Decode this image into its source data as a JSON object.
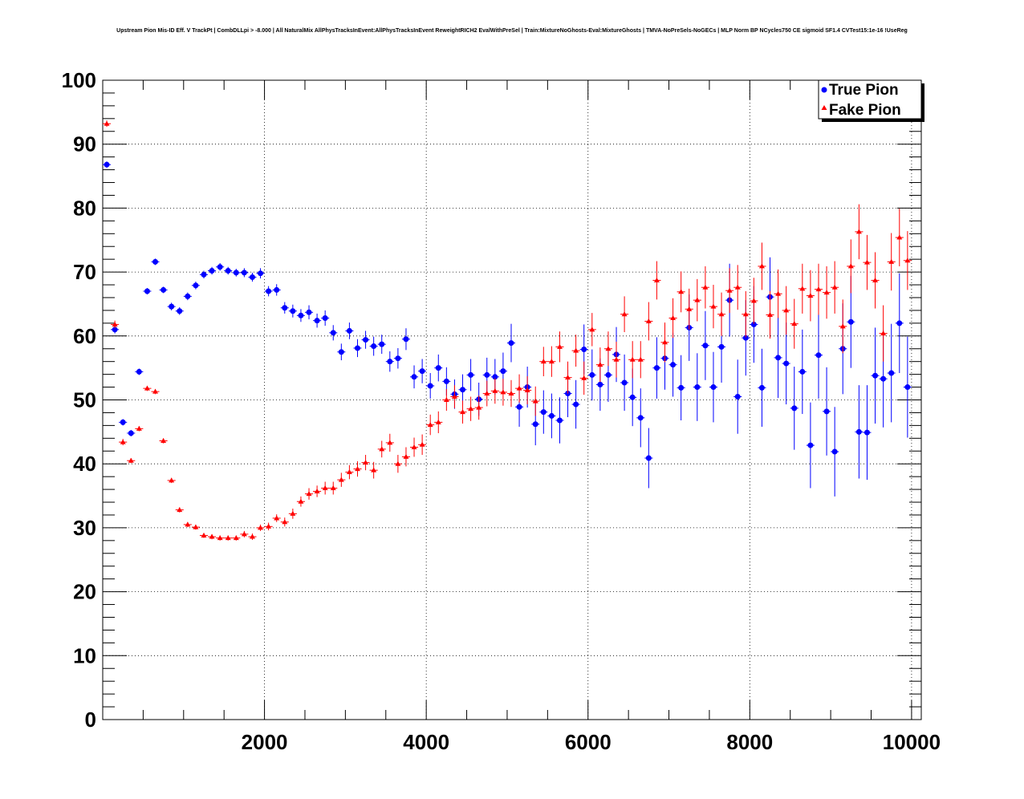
{
  "chart_data": {
    "type": "scatter",
    "title": "Upstream Pion Mis-ID Eff. V TrackPt | CombDLLpi > -8.000 | All NaturalMix AllPhysTracksInEvent:AllPhysTracksInEvent ReweightRICH2 EvalWithPreSel | Train:MixtureNoGhosts-Eval:MixtureGhosts | TMVA-NoPreSels-NoGECs | MLP Norm BP NCycles750 CE sigmoid SF1.4 CVTest15:1e-16 !UseReg",
    "xlabel": "",
    "ylabel": "",
    "xlim": [
      0,
      10000
    ],
    "ylim": [
      0,
      100
    ],
    "xticks": [
      2000,
      4000,
      6000,
      8000,
      10000
    ],
    "yticks": [
      0,
      10,
      20,
      30,
      40,
      50,
      60,
      70,
      80,
      90,
      100
    ],
    "grid": true,
    "legend_position": "top-right",
    "bin_half_width": 50,
    "series": [
      {
        "name": "True Pion",
        "color": "#0000ff",
        "marker": "circle",
        "x": [
          50,
          150,
          250,
          350,
          450,
          550,
          650,
          750,
          850,
          950,
          1050,
          1150,
          1250,
          1350,
          1450,
          1550,
          1650,
          1750,
          1850,
          1950,
          2050,
          2150,
          2250,
          2350,
          2450,
          2550,
          2650,
          2750,
          2850,
          2950,
          3050,
          3150,
          3250,
          3350,
          3450,
          3550,
          3650,
          3750,
          3850,
          3950,
          4050,
          4150,
          4250,
          4350,
          4450,
          4550,
          4650,
          4750,
          4850,
          4950,
          5050,
          5150,
          5250,
          5350,
          5450,
          5550,
          5650,
          5750,
          5850,
          5950,
          6050,
          6150,
          6250,
          6350,
          6450,
          6550,
          6650,
          6750,
          6850,
          6950,
          7050,
          7150,
          7250,
          7350,
          7450,
          7550,
          7650,
          7750,
          7850,
          7950,
          8050,
          8150,
          8250,
          8350,
          8450,
          8550,
          8650,
          8750,
          8850,
          8950,
          9050,
          9150,
          9250,
          9350,
          9450,
          9550,
          9650,
          9750,
          9850,
          9950
        ],
        "y": [
          86.8,
          61.0,
          46.5,
          44.8,
          54.4,
          67.0,
          71.6,
          67.2,
          64.6,
          63.9,
          66.2,
          67.9,
          69.6,
          70.2,
          70.8,
          70.2,
          69.9,
          69.9,
          69.2,
          69.8,
          67.0,
          67.2,
          64.4,
          63.9,
          63.2,
          63.7,
          62.4,
          62.8,
          60.5,
          57.5,
          60.8,
          58.1,
          59.4,
          58.4,
          58.7,
          56.0,
          56.5,
          59.5,
          53.6,
          54.5,
          52.2,
          55.0,
          52.9,
          50.9,
          51.6,
          53.9,
          50.1,
          53.9,
          53.6,
          54.5,
          58.9,
          48.9,
          52.0,
          46.2,
          48.1,
          47.5,
          46.8,
          51.0,
          49.3,
          57.9,
          53.9,
          52.4,
          53.9,
          57.1,
          52.7,
          50.4,
          47.2,
          40.9,
          55.0,
          56.5,
          55.5,
          51.9,
          61.3,
          52.0,
          58.5,
          52.0,
          58.3,
          65.6,
          50.5,
          59.7,
          61.8,
          51.9,
          66.1,
          56.6,
          55.7,
          48.7,
          54.4,
          42.9,
          57.0,
          48.2,
          41.9,
          58.0,
          62.2,
          45.0,
          44.9,
          53.8,
          53.3,
          54.2,
          62.0,
          52.0
        ],
        "yerr": [
          0.5,
          0.6,
          0.5,
          0.5,
          0.5,
          0.5,
          0.5,
          0.5,
          0.6,
          0.6,
          0.6,
          0.6,
          0.6,
          0.6,
          0.6,
          0.6,
          0.6,
          0.7,
          0.7,
          0.8,
          0.8,
          0.9,
          0.9,
          1.0,
          1.0,
          1.1,
          1.1,
          1.2,
          1.2,
          1.3,
          1.3,
          1.4,
          1.4,
          1.5,
          1.5,
          1.6,
          1.6,
          1.7,
          1.8,
          1.9,
          2.0,
          2.1,
          2.2,
          2.3,
          2.4,
          2.5,
          2.6,
          2.7,
          2.8,
          2.9,
          3.0,
          3.1,
          3.2,
          3.3,
          3.4,
          3.5,
          3.6,
          3.7,
          3.8,
          3.9,
          4.0,
          4.1,
          4.2,
          4.3,
          4.4,
          4.5,
          4.6,
          4.7,
          4.8,
          4.9,
          5.0,
          5.1,
          5.2,
          5.3,
          5.4,
          5.5,
          5.6,
          5.7,
          5.8,
          5.9,
          6.0,
          6.1,
          6.2,
          6.3,
          6.4,
          6.5,
          6.6,
          6.7,
          6.8,
          6.9,
          7.0,
          7.1,
          7.2,
          7.3,
          7.4,
          7.5,
          7.6,
          7.7,
          7.8,
          7.9
        ]
      },
      {
        "name": "Fake Pion",
        "color": "#ff0000",
        "marker": "triangle",
        "x": [
          50,
          150,
          250,
          350,
          450,
          550,
          650,
          750,
          850,
          950,
          1050,
          1150,
          1250,
          1350,
          1450,
          1550,
          1650,
          1750,
          1850,
          1950,
          2050,
          2150,
          2250,
          2350,
          2450,
          2550,
          2650,
          2750,
          2850,
          2950,
          3050,
          3150,
          3250,
          3350,
          3450,
          3550,
          3650,
          3750,
          3850,
          3950,
          4050,
          4150,
          4250,
          4350,
          4450,
          4550,
          4650,
          4750,
          4850,
          4950,
          5050,
          5150,
          5250,
          5350,
          5450,
          5550,
          5650,
          5750,
          5850,
          5950,
          6050,
          6150,
          6250,
          6350,
          6450,
          6550,
          6650,
          6750,
          6850,
          6950,
          7050,
          7150,
          7250,
          7350,
          7450,
          7550,
          7650,
          7750,
          7850,
          7950,
          8050,
          8150,
          8250,
          8350,
          8450,
          8550,
          8650,
          8750,
          8850,
          8950,
          9050,
          9150,
          9250,
          9350,
          9450,
          9550,
          9650,
          9750,
          9850,
          9950
        ],
        "y": [
          93.2,
          61.8,
          43.4,
          40.5,
          45.5,
          51.8,
          51.3,
          43.6,
          37.4,
          32.8,
          30.5,
          30.1,
          28.8,
          28.6,
          28.4,
          28.4,
          28.4,
          29.0,
          28.6,
          30.0,
          30.2,
          31.5,
          30.9,
          32.2,
          34.1,
          35.3,
          35.7,
          36.2,
          36.2,
          37.5,
          38.7,
          39.2,
          40.2,
          39.0,
          42.3,
          43.3,
          40.0,
          41.1,
          42.6,
          43.0,
          46.1,
          46.5,
          50.0,
          50.5,
          48.1,
          48.6,
          48.8,
          51.0,
          51.4,
          51.2,
          51.0,
          51.8,
          51.5,
          49.8,
          56.0,
          56.0,
          58.3,
          53.5,
          57.7,
          53.4,
          61.0,
          55.5,
          58.0,
          56.3,
          63.4,
          56.3,
          56.3,
          62.3,
          68.7,
          59.0,
          62.8,
          66.9,
          64.2,
          65.6,
          67.6,
          64.6,
          63.4,
          67.1,
          67.6,
          63.4,
          65.5,
          70.9,
          63.3,
          66.6,
          64.0,
          61.9,
          67.4,
          66.3,
          67.3,
          66.8,
          67.6,
          61.5,
          70.9,
          76.3,
          71.5,
          68.7,
          60.4,
          71.6,
          75.4,
          71.8
        ],
        "yerr": [
          0.5,
          0.6,
          0.5,
          0.4,
          0.4,
          0.4,
          0.4,
          0.4,
          0.4,
          0.4,
          0.4,
          0.4,
          0.4,
          0.4,
          0.4,
          0.4,
          0.4,
          0.5,
          0.5,
          0.5,
          0.6,
          0.6,
          0.7,
          0.8,
          0.8,
          0.9,
          0.9,
          1.0,
          1.0,
          1.1,
          1.1,
          1.2,
          1.2,
          1.3,
          1.3,
          1.4,
          1.4,
          1.5,
          1.5,
          1.6,
          1.6,
          1.7,
          1.7,
          1.8,
          1.8,
          1.9,
          1.9,
          2.0,
          2.0,
          2.1,
          2.1,
          2.2,
          2.2,
          2.3,
          2.3,
          2.4,
          2.4,
          2.5,
          2.5,
          2.6,
          2.6,
          2.7,
          2.7,
          2.8,
          2.8,
          2.9,
          2.9,
          3.0,
          3.0,
          3.1,
          3.1,
          3.2,
          3.2,
          3.3,
          3.3,
          3.4,
          3.4,
          3.5,
          3.5,
          3.6,
          3.6,
          3.7,
          3.7,
          3.8,
          3.8,
          3.9,
          3.9,
          4.0,
          4.0,
          4.1,
          4.1,
          4.2,
          4.2,
          4.3,
          4.3,
          4.4,
          4.4,
          4.5,
          4.5,
          4.6
        ]
      }
    ]
  }
}
